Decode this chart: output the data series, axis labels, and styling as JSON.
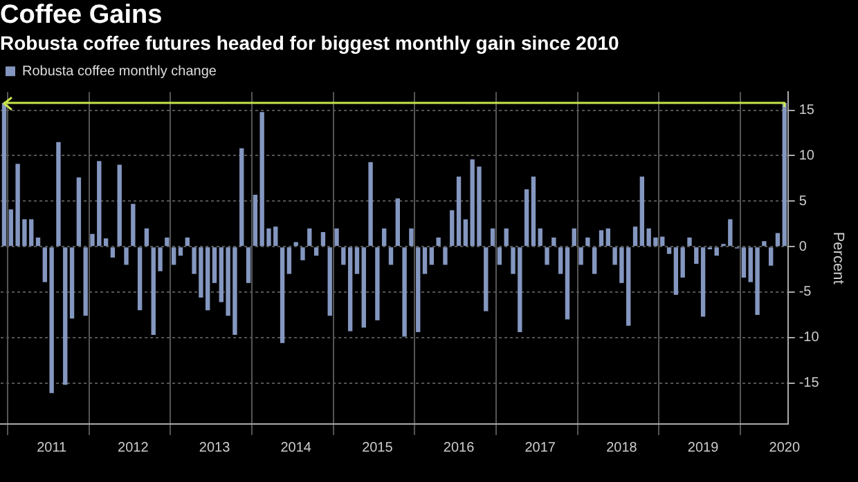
{
  "chart_data": {
    "type": "bar",
    "title": "Coffee Gains",
    "subtitle": "Robusta coffee futures headed for biggest monthly gain since 2010",
    "ylabel": "Percent",
    "categories": [
      null,
      null,
      null,
      null,
      null,
      null,
      null,
      "2011",
      null,
      null,
      null,
      null,
      null,
      null,
      null,
      null,
      null,
      null,
      null,
      "2012",
      null,
      null,
      null,
      null,
      null,
      null,
      null,
      null,
      null,
      null,
      null,
      "2013",
      null,
      null,
      null,
      null,
      null,
      null,
      null,
      null,
      null,
      null,
      null,
      "2014",
      null,
      null,
      null,
      null,
      null,
      null,
      null,
      null,
      null,
      null,
      null,
      "2015",
      null,
      null,
      null,
      null,
      null,
      null,
      null,
      null,
      null,
      null,
      null,
      "2016",
      null,
      null,
      null,
      null,
      null,
      null,
      null,
      null,
      null,
      null,
      null,
      "2017",
      null,
      null,
      null,
      null,
      null,
      null,
      null,
      null,
      null,
      null,
      null,
      "2018",
      null,
      null,
      null,
      null,
      null,
      null,
      null,
      null,
      null,
      null,
      null,
      "2019",
      null,
      null,
      null,
      null,
      null,
      null,
      null,
      null,
      null,
      null,
      null,
      "2020"
    ],
    "series": [
      {
        "name": "Robusta coffee monthly change",
        "color": "#8497c0",
        "values": [
          15.8,
          4.1,
          9.1,
          3,
          3,
          1,
          -3.9,
          -16.1,
          11.5,
          -15.2,
          -7.9,
          7.6,
          -7.6,
          1.4,
          9.4,
          0.9,
          -1.2,
          9,
          -2,
          4.7,
          -7,
          2,
          -9.7,
          -2.7,
          1,
          -2,
          -1,
          1,
          -3,
          -5.6,
          -7,
          -4,
          -6.1,
          -7.6,
          -9.7,
          10.8,
          -4,
          5.7,
          14.8,
          2,
          2.2,
          -10.6,
          -3,
          0.5,
          -1.5,
          2,
          -1,
          1.6,
          -7.6,
          2,
          -2,
          -9.3,
          -3,
          -8.9,
          9.3,
          -8.1,
          2,
          -2,
          5.3,
          -9.9,
          2,
          -9.4,
          -3,
          -2,
          1,
          -2,
          4,
          7.7,
          3,
          9.6,
          8.8,
          -7.1,
          2,
          -2,
          2,
          -3,
          -9.4,
          6.3,
          7.7,
          2,
          -2,
          1,
          -3,
          -8,
          2,
          -2,
          1,
          -3,
          1.8,
          2,
          -2,
          -4,
          -8.7,
          2.2,
          7.7,
          2,
          1,
          1.1,
          -0.8,
          -5.3,
          -3.4,
          1,
          -1.9,
          -7.7,
          -0.3,
          -1,
          0.3,
          3,
          -0.2,
          -3.4,
          -3.9,
          -7.5,
          0.6,
          -2.1,
          1.5,
          15.8
        ]
      }
    ],
    "ylim": [
      -19.5,
      17
    ],
    "yticks": [
      -15,
      -10,
      -5,
      0,
      5,
      10,
      15
    ],
    "grid": true,
    "legend": "top left",
    "ref_lines": [
      {
        "axis": "y",
        "value": 15.8,
        "color": "#c8e64a"
      }
    ]
  }
}
